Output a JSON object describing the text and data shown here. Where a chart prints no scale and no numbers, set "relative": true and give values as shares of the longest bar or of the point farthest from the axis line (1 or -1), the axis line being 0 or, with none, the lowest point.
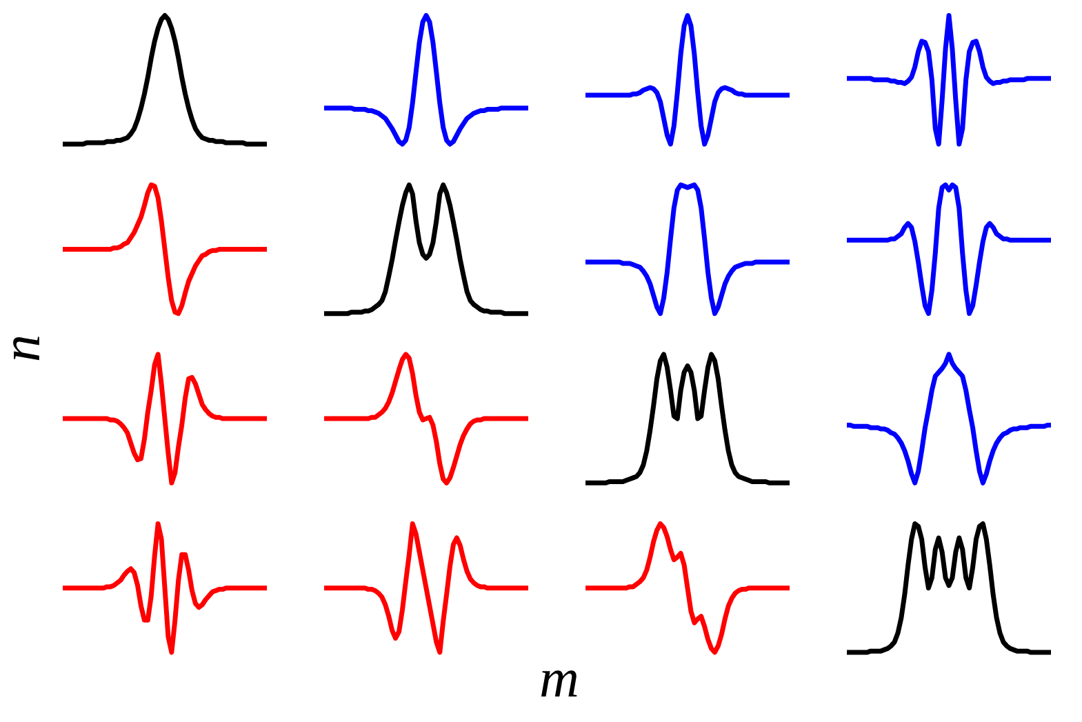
{
  "chart_data": [
    {
      "type": "line",
      "relative": true,
      "color": "#000000",
      "categories": [
        null,
        null,
        null,
        null,
        null,
        null,
        null,
        null,
        null,
        null,
        null,
        null,
        null,
        null,
        null,
        null,
        null,
        null,
        null,
        null,
        null,
        null,
        null,
        null,
        null,
        null,
        null,
        null,
        null,
        null,
        null,
        null,
        null,
        null,
        null,
        null,
        null,
        null,
        null,
        null,
        null,
        null,
        null,
        null,
        null,
        null,
        null,
        null,
        null,
        null,
        null,
        null,
        null,
        null,
        null,
        null,
        null,
        null,
        null,
        null,
        null
      ],
      "values": [
        0,
        0,
        0,
        0,
        0,
        0,
        0,
        0.01,
        0.01,
        0.01,
        0.01,
        0.01,
        0.01,
        0.02,
        0.02,
        0.02,
        0.03,
        0.03,
        0.04,
        0.05,
        0.08,
        0.12,
        0.19,
        0.28,
        0.39,
        0.52,
        0.67,
        0.8,
        0.9,
        0.97,
        1,
        0.97,
        0.9,
        0.8,
        0.67,
        0.52,
        0.39,
        0.28,
        0.19,
        0.12,
        0.08,
        0.05,
        0.04,
        0.03,
        0.03,
        0.02,
        0.02,
        0.02,
        0.01,
        0.01,
        0.01,
        0.01,
        0.01,
        0.01,
        0,
        0,
        0,
        0,
        0,
        0,
        0
      ]
    },
    {
      "type": "line",
      "relative": true,
      "color": "#0000ff",
      "categories": [
        null,
        null,
        null,
        null,
        null,
        null,
        null,
        null,
        null,
        null,
        null,
        null,
        null,
        null,
        null,
        null,
        null,
        null,
        null,
        null,
        null,
        null,
        null,
        null,
        null,
        null,
        null,
        null,
        null,
        null,
        null,
        null,
        null,
        null,
        null,
        null,
        null,
        null,
        null,
        null,
        null,
        null,
        null,
        null,
        null,
        null,
        null,
        null,
        null,
        null,
        null,
        null,
        null,
        null,
        null,
        null,
        null,
        null,
        null,
        null,
        null
      ],
      "values": [
        0.28,
        0.28,
        0.28,
        0.28,
        0.28,
        0.28,
        0.28,
        0.28,
        0.28,
        0.27,
        0.27,
        0.27,
        0.27,
        0.26,
        0.26,
        0.25,
        0.24,
        0.22,
        0.2,
        0.16,
        0.12,
        0.07,
        0.02,
        0,
        0.03,
        0.13,
        0.32,
        0.56,
        0.79,
        0.95,
        1,
        0.95,
        0.79,
        0.56,
        0.32,
        0.13,
        0.03,
        0,
        0.02,
        0.07,
        0.12,
        0.16,
        0.2,
        0.22,
        0.24,
        0.25,
        0.26,
        0.26,
        0.27,
        0.27,
        0.27,
        0.27,
        0.28,
        0.28,
        0.28,
        0.28,
        0.28,
        0.28,
        0.28,
        0.28,
        0.28
      ]
    },
    {
      "type": "line",
      "relative": true,
      "color": "#0000ff",
      "categories": [
        null,
        null,
        null,
        null,
        null,
        null,
        null,
        null,
        null,
        null,
        null,
        null,
        null,
        null,
        null,
        null,
        null,
        null,
        null,
        null,
        null,
        null,
        null,
        null,
        null,
        null,
        null,
        null,
        null,
        null,
        null,
        null,
        null,
        null,
        null,
        null,
        null,
        null,
        null,
        null,
        null,
        null,
        null,
        null,
        null,
        null,
        null,
        null,
        null,
        null,
        null,
        null,
        null,
        null,
        null,
        null,
        null,
        null,
        null,
        null,
        null
      ],
      "values": [
        0.38,
        0.38,
        0.38,
        0.38,
        0.38,
        0.38,
        0.38,
        0.38,
        0.38,
        0.38,
        0.38,
        0.38,
        0.38,
        0.38,
        0.39,
        0.39,
        0.4,
        0.42,
        0.43,
        0.44,
        0.43,
        0.4,
        0.33,
        0.2,
        0.07,
        0,
        0.14,
        0.4,
        0.7,
        0.92,
        1,
        0.92,
        0.7,
        0.4,
        0.14,
        0,
        0.07,
        0.2,
        0.33,
        0.4,
        0.43,
        0.44,
        0.43,
        0.42,
        0.4,
        0.39,
        0.39,
        0.38,
        0.38,
        0.38,
        0.38,
        0.38,
        0.38,
        0.38,
        0.38,
        0.38,
        0.38,
        0.38,
        0.38,
        0.38,
        0.38
      ]
    },
    {
      "type": "line",
      "relative": true,
      "color": "#0000ff",
      "categories": [
        null,
        null,
        null,
        null,
        null,
        null,
        null,
        null,
        null,
        null,
        null,
        null,
        null,
        null,
        null,
        null,
        null,
        null,
        null,
        null,
        null,
        null,
        null,
        null,
        null,
        null,
        null,
        null,
        null,
        null,
        null,
        null,
        null,
        null,
        null,
        null,
        null,
        null,
        null,
        null,
        null,
        null,
        null,
        null,
        null,
        null,
        null,
        null,
        null,
        null,
        null,
        null,
        null,
        null,
        null,
        null,
        null,
        null,
        null,
        null,
        null
      ],
      "values": [
        0.51,
        0.51,
        0.51,
        0.51,
        0.51,
        0.51,
        0.51,
        0.51,
        0.5,
        0.5,
        0.5,
        0.5,
        0.5,
        0.49,
        0.49,
        0.48,
        0.48,
        0.47,
        0.49,
        0.52,
        0.6,
        0.72,
        0.8,
        0.79,
        0.72,
        0.5,
        0.12,
        0,
        0.34,
        0.74,
        1,
        0.74,
        0.34,
        0,
        0.12,
        0.5,
        0.72,
        0.79,
        0.8,
        0.72,
        0.6,
        0.52,
        0.49,
        0.47,
        0.48,
        0.48,
        0.49,
        0.49,
        0.5,
        0.5,
        0.5,
        0.5,
        0.5,
        0.51,
        0.51,
        0.51,
        0.51,
        0.51,
        0.51,
        0.51,
        0.51
      ]
    },
    {
      "type": "line",
      "relative": true,
      "color": "#ff0000",
      "categories": [
        null,
        null,
        null,
        null,
        null,
        null,
        null,
        null,
        null,
        null,
        null,
        null,
        null,
        null,
        null,
        null,
        null,
        null,
        null,
        null,
        null,
        null,
        null,
        null,
        null,
        null,
        null,
        null,
        null,
        null,
        null,
        null,
        null,
        null,
        null,
        null,
        null,
        null,
        null,
        null,
        null,
        null,
        null,
        null,
        null,
        null,
        null,
        null,
        null,
        null,
        null,
        null,
        null,
        null,
        null,
        null,
        null,
        null,
        null,
        null,
        null
      ],
      "values": [
        0.5,
        0.5,
        0.5,
        0.5,
        0.5,
        0.5,
        0.5,
        0.5,
        0.5,
        0.5,
        0.5,
        0.5,
        0.5,
        0.5,
        0.5,
        0.51,
        0.51,
        0.52,
        0.54,
        0.55,
        0.59,
        0.63,
        0.69,
        0.75,
        0.84,
        0.94,
        1,
        0.99,
        0.9,
        0.72,
        0.5,
        0.28,
        0.1,
        0.01,
        0,
        0.06,
        0.16,
        0.25,
        0.31,
        0.37,
        0.41,
        0.45,
        0.46,
        0.48,
        0.49,
        0.49,
        0.5,
        0.5,
        0.5,
        0.5,
        0.5,
        0.5,
        0.5,
        0.5,
        0.5,
        0.5,
        0.5,
        0.5,
        0.5,
        0.5,
        0.5
      ]
    },
    {
      "type": "line",
      "relative": true,
      "color": "#000000",
      "categories": [
        null,
        null,
        null,
        null,
        null,
        null,
        null,
        null,
        null,
        null,
        null,
        null,
        null,
        null,
        null,
        null,
        null,
        null,
        null,
        null,
        null,
        null,
        null,
        null,
        null,
        null,
        null,
        null,
        null,
        null,
        null,
        null,
        null,
        null,
        null,
        null,
        null,
        null,
        null,
        null,
        null,
        null,
        null,
        null,
        null,
        null,
        null,
        null,
        null,
        null,
        null,
        null,
        null,
        null,
        null,
        null,
        null,
        null,
        null,
        null,
        null
      ],
      "values": [
        0,
        0,
        0,
        0,
        0,
        0,
        0,
        0,
        0.01,
        0.01,
        0.01,
        0.01,
        0.02,
        0.02,
        0.03,
        0.05,
        0.07,
        0.1,
        0.17,
        0.29,
        0.42,
        0.57,
        0.71,
        0.84,
        0.94,
        1,
        0.93,
        0.72,
        0.55,
        0.46,
        0.43,
        0.46,
        0.55,
        0.72,
        0.93,
        1,
        0.94,
        0.84,
        0.71,
        0.57,
        0.42,
        0.29,
        0.17,
        0.1,
        0.07,
        0.05,
        0.03,
        0.02,
        0.02,
        0.01,
        0.01,
        0.01,
        0.01,
        0,
        0,
        0,
        0,
        0,
        0,
        0,
        0
      ]
    },
    {
      "type": "line",
      "relative": true,
      "color": "#0000ff",
      "categories": [
        null,
        null,
        null,
        null,
        null,
        null,
        null,
        null,
        null,
        null,
        null,
        null,
        null,
        null,
        null,
        null,
        null,
        null,
        null,
        null,
        null,
        null,
        null,
        null,
        null,
        null,
        null,
        null,
        null,
        null,
        null,
        null,
        null,
        null,
        null,
        null,
        null,
        null,
        null,
        null,
        null,
        null,
        null,
        null,
        null,
        null,
        null,
        null,
        null,
        null,
        null,
        null,
        null,
        null,
        null,
        null,
        null,
        null,
        null,
        null,
        null
      ],
      "values": [
        0.4,
        0.4,
        0.4,
        0.4,
        0.4,
        0.4,
        0.4,
        0.4,
        0.4,
        0.4,
        0.4,
        0.39,
        0.39,
        0.39,
        0.38,
        0.37,
        0.36,
        0.33,
        0.29,
        0.23,
        0.14,
        0.05,
        0,
        0.12,
        0.32,
        0.58,
        0.82,
        0.96,
        1,
        0.99,
        0.98,
        0.99,
        1,
        0.96,
        0.82,
        0.58,
        0.32,
        0.12,
        0,
        0.05,
        0.14,
        0.23,
        0.29,
        0.33,
        0.36,
        0.37,
        0.38,
        0.39,
        0.39,
        0.39,
        0.4,
        0.4,
        0.4,
        0.4,
        0.4,
        0.4,
        0.4,
        0.4,
        0.4,
        0.4,
        0.4
      ]
    },
    {
      "type": "line",
      "relative": true,
      "color": "#0000ff",
      "categories": [
        null,
        null,
        null,
        null,
        null,
        null,
        null,
        null,
        null,
        null,
        null,
        null,
        null,
        null,
        null,
        null,
        null,
        null,
        null,
        null,
        null,
        null,
        null,
        null,
        null,
        null,
        null,
        null,
        null,
        null,
        null,
        null,
        null,
        null,
        null,
        null,
        null,
        null,
        null,
        null,
        null,
        null,
        null,
        null,
        null,
        null,
        null,
        null,
        null,
        null,
        null,
        null,
        null,
        null,
        null,
        null,
        null,
        null,
        null,
        null,
        null
      ],
      "values": [
        0.57,
        0.57,
        0.57,
        0.57,
        0.57,
        0.57,
        0.57,
        0.57,
        0.57,
        0.57,
        0.57,
        0.57,
        0.57,
        0.58,
        0.58,
        0.6,
        0.62,
        0.67,
        0.7,
        0.67,
        0.56,
        0.4,
        0.22,
        0.06,
        0,
        0.18,
        0.47,
        0.82,
        0.98,
        1,
        0.96,
        1,
        0.98,
        0.82,
        0.47,
        0.18,
        0,
        0.06,
        0.22,
        0.4,
        0.56,
        0.67,
        0.7,
        0.67,
        0.62,
        0.6,
        0.58,
        0.58,
        0.57,
        0.57,
        0.57,
        0.57,
        0.57,
        0.57,
        0.57,
        0.57,
        0.57,
        0.57,
        0.57,
        0.57,
        0.57
      ]
    },
    {
      "type": "line",
      "relative": true,
      "color": "#ff0000",
      "ylabel": "n",
      "categories": [
        null,
        null,
        null,
        null,
        null,
        null,
        null,
        null,
        null,
        null,
        null,
        null,
        null,
        null,
        null,
        null,
        null,
        null,
        null,
        null,
        null,
        null,
        null,
        null,
        null,
        null,
        null,
        null,
        null,
        null,
        null,
        null,
        null,
        null,
        null,
        null,
        null,
        null,
        null,
        null,
        null,
        null,
        null,
        null,
        null,
        null,
        null,
        null,
        null,
        null,
        null,
        null,
        null,
        null,
        null,
        null,
        null,
        null,
        null,
        null,
        null
      ],
      "values": [
        0.5,
        0.5,
        0.5,
        0.5,
        0.5,
        0.5,
        0.5,
        0.5,
        0.5,
        0.5,
        0.5,
        0.5,
        0.5,
        0.5,
        0.49,
        0.49,
        0.48,
        0.46,
        0.43,
        0.39,
        0.31,
        0.23,
        0.18,
        0.19,
        0.34,
        0.55,
        0.72,
        0.92,
        1,
        0.77,
        0.5,
        0.23,
        0,
        0.08,
        0.28,
        0.45,
        0.66,
        0.81,
        0.82,
        0.77,
        0.69,
        0.61,
        0.57,
        0.54,
        0.52,
        0.51,
        0.51,
        0.5,
        0.5,
        0.5,
        0.5,
        0.5,
        0.5,
        0.5,
        0.5,
        0.5,
        0.5,
        0.5,
        0.5,
        0.5,
        0.5
      ]
    },
    {
      "type": "line",
      "relative": true,
      "color": "#ff0000",
      "categories": [
        null,
        null,
        null,
        null,
        null,
        null,
        null,
        null,
        null,
        null,
        null,
        null,
        null,
        null,
        null,
        null,
        null,
        null,
        null,
        null,
        null,
        null,
        null,
        null,
        null,
        null,
        null,
        null,
        null,
        null,
        null,
        null,
        null,
        null,
        null,
        null,
        null,
        null,
        null,
        null,
        null,
        null,
        null,
        null,
        null,
        null,
        null,
        null,
        null,
        null,
        null,
        null,
        null,
        null,
        null,
        null,
        null,
        null,
        null,
        null,
        null
      ],
      "values": [
        0.5,
        0.5,
        0.5,
        0.5,
        0.5,
        0.5,
        0.5,
        0.5,
        0.5,
        0.5,
        0.5,
        0.5,
        0.5,
        0.5,
        0.51,
        0.51,
        0.53,
        0.55,
        0.58,
        0.63,
        0.7,
        0.79,
        0.88,
        0.96,
        1,
        0.97,
        0.85,
        0.68,
        0.55,
        0.49,
        0.5,
        0.51,
        0.45,
        0.32,
        0.15,
        0.03,
        0,
        0.04,
        0.12,
        0.21,
        0.3,
        0.37,
        0.42,
        0.46,
        0.48,
        0.49,
        0.49,
        0.5,
        0.5,
        0.5,
        0.5,
        0.5,
        0.5,
        0.5,
        0.5,
        0.5,
        0.5,
        0.5,
        0.5,
        0.5,
        0.5
      ]
    },
    {
      "type": "line",
      "relative": true,
      "color": "#000000",
      "categories": [
        null,
        null,
        null,
        null,
        null,
        null,
        null,
        null,
        null,
        null,
        null,
        null,
        null,
        null,
        null,
        null,
        null,
        null,
        null,
        null,
        null,
        null,
        null,
        null,
        null,
        null,
        null,
        null,
        null,
        null,
        null,
        null,
        null,
        null,
        null,
        null,
        null,
        null,
        null,
        null,
        null,
        null,
        null,
        null,
        null,
        null,
        null,
        null,
        null,
        null,
        null,
        null,
        null,
        null,
        null,
        null,
        null,
        null,
        null,
        null,
        null
      ],
      "values": [
        0,
        0,
        0,
        0,
        0,
        0,
        0,
        0.01,
        0.01,
        0.01,
        0.01,
        0.01,
        0.02,
        0.03,
        0.04,
        0.05,
        0.08,
        0.14,
        0.25,
        0.41,
        0.6,
        0.81,
        0.95,
        1,
        0.9,
        0.72,
        0.52,
        0.5,
        0.72,
        0.86,
        0.91,
        0.86,
        0.72,
        0.5,
        0.52,
        0.72,
        0.9,
        1,
        0.95,
        0.81,
        0.6,
        0.41,
        0.25,
        0.14,
        0.08,
        0.05,
        0.04,
        0.03,
        0.02,
        0.01,
        0.01,
        0.01,
        0.01,
        0.01,
        0,
        0,
        0,
        0,
        0,
        0,
        0
      ]
    },
    {
      "type": "line",
      "relative": true,
      "color": "#0000ff",
      "categories": [
        null,
        null,
        null,
        null,
        null,
        null,
        null,
        null,
        null,
        null,
        null,
        null,
        null,
        null,
        null,
        null,
        null,
        null,
        null,
        null,
        null,
        null,
        null,
        null,
        null,
        null,
        null,
        null,
        null,
        null,
        null,
        null,
        null,
        null,
        null,
        null,
        null,
        null,
        null,
        null,
        null,
        null,
        null,
        null,
        null,
        null,
        null,
        null,
        null,
        null,
        null,
        null,
        null,
        null,
        null,
        null,
        null,
        null,
        null,
        null,
        null
      ],
      "values": [
        0.45,
        0.45,
        0.44,
        0.44,
        0.44,
        0.44,
        0.44,
        0.43,
        0.43,
        0.43,
        0.42,
        0.42,
        0.41,
        0.39,
        0.38,
        0.35,
        0.31,
        0.25,
        0.17,
        0.07,
        0,
        0.09,
        0.25,
        0.43,
        0.57,
        0.72,
        0.83,
        0.86,
        0.89,
        0.93,
        1,
        0.93,
        0.89,
        0.86,
        0.83,
        0.72,
        0.57,
        0.43,
        0.25,
        0.09,
        0,
        0.07,
        0.17,
        0.25,
        0.31,
        0.35,
        0.38,
        0.39,
        0.41,
        0.42,
        0.42,
        0.43,
        0.43,
        0.43,
        0.44,
        0.44,
        0.44,
        0.44,
        0.44,
        0.45,
        0.45
      ]
    },
    {
      "type": "line",
      "relative": true,
      "color": "#ff0000",
      "categories": [
        null,
        null,
        null,
        null,
        null,
        null,
        null,
        null,
        null,
        null,
        null,
        null,
        null,
        null,
        null,
        null,
        null,
        null,
        null,
        null,
        null,
        null,
        null,
        null,
        null,
        null,
        null,
        null,
        null,
        null,
        null,
        null,
        null,
        null,
        null,
        null,
        null,
        null,
        null,
        null,
        null,
        null,
        null,
        null,
        null,
        null,
        null,
        null,
        null,
        null,
        null,
        null,
        null,
        null,
        null,
        null,
        null,
        null,
        null,
        null,
        null
      ],
      "values": [
        0.5,
        0.5,
        0.5,
        0.5,
        0.5,
        0.5,
        0.5,
        0.5,
        0.5,
        0.5,
        0.5,
        0.5,
        0.5,
        0.51,
        0.51,
        0.52,
        0.54,
        0.56,
        0.6,
        0.63,
        0.65,
        0.62,
        0.52,
        0.36,
        0.25,
        0.25,
        0.44,
        0.75,
        1,
        0.88,
        0.5,
        0.12,
        0,
        0.25,
        0.56,
        0.76,
        0.76,
        0.64,
        0.48,
        0.38,
        0.35,
        0.37,
        0.41,
        0.44,
        0.47,
        0.48,
        0.49,
        0.49,
        0.5,
        0.5,
        0.5,
        0.5,
        0.5,
        0.5,
        0.5,
        0.5,
        0.5,
        0.5,
        0.5,
        0.5,
        0.5
      ]
    },
    {
      "type": "line",
      "relative": true,
      "color": "#ff0000",
      "xlabel": "m",
      "categories": [
        null,
        null,
        null,
        null,
        null,
        null,
        null,
        null,
        null,
        null,
        null,
        null,
        null,
        null,
        null,
        null,
        null,
        null,
        null,
        null,
        null,
        null,
        null,
        null,
        null,
        null,
        null,
        null,
        null,
        null,
        null,
        null,
        null,
        null,
        null,
        null,
        null,
        null,
        null,
        null,
        null,
        null,
        null,
        null,
        null,
        null,
        null,
        null,
        null,
        null,
        null,
        null,
        null,
        null,
        null,
        null,
        null,
        null,
        null,
        null,
        null
      ],
      "values": [
        0.5,
        0.5,
        0.5,
        0.5,
        0.5,
        0.5,
        0.5,
        0.5,
        0.5,
        0.5,
        0.5,
        0.5,
        0.5,
        0.49,
        0.49,
        0.48,
        0.46,
        0.43,
        0.37,
        0.28,
        0.17,
        0.11,
        0.16,
        0.33,
        0.55,
        0.76,
        1,
        0.92,
        0.78,
        0.64,
        0.5,
        0.36,
        0.22,
        0.08,
        0,
        0.24,
        0.45,
        0.67,
        0.84,
        0.89,
        0.83,
        0.72,
        0.63,
        0.57,
        0.54,
        0.52,
        0.51,
        0.51,
        0.5,
        0.5,
        0.5,
        0.5,
        0.5,
        0.5,
        0.5,
        0.5,
        0.5,
        0.5,
        0.5,
        0.5,
        0.5
      ]
    },
    {
      "type": "line",
      "relative": true,
      "color": "#ff0000",
      "categories": [
        null,
        null,
        null,
        null,
        null,
        null,
        null,
        null,
        null,
        null,
        null,
        null,
        null,
        null,
        null,
        null,
        null,
        null,
        null,
        null,
        null,
        null,
        null,
        null,
        null,
        null,
        null,
        null,
        null,
        null,
        null,
        null,
        null,
        null,
        null,
        null,
        null,
        null,
        null,
        null,
        null,
        null,
        null,
        null,
        null,
        null,
        null,
        null,
        null,
        null,
        null,
        null,
        null,
        null,
        null,
        null,
        null,
        null,
        null,
        null,
        null
      ],
      "values": [
        0.5,
        0.5,
        0.5,
        0.5,
        0.5,
        0.5,
        0.5,
        0.5,
        0.5,
        0.5,
        0.5,
        0.5,
        0.5,
        0.51,
        0.51,
        0.53,
        0.55,
        0.58,
        0.64,
        0.74,
        0.86,
        0.95,
        1,
        0.97,
        0.9,
        0.8,
        0.72,
        0.74,
        0.77,
        0.68,
        0.5,
        0.32,
        0.23,
        0.26,
        0.28,
        0.2,
        0.1,
        0.03,
        0,
        0.05,
        0.14,
        0.26,
        0.36,
        0.42,
        0.46,
        0.48,
        0.49,
        0.49,
        0.5,
        0.5,
        0.5,
        0.5,
        0.5,
        0.5,
        0.5,
        0.5,
        0.5,
        0.5,
        0.5,
        0.5,
        0.5
      ]
    },
    {
      "type": "line",
      "relative": true,
      "color": "#000000",
      "categories": [
        null,
        null,
        null,
        null,
        null,
        null,
        null,
        null,
        null,
        null,
        null,
        null,
        null,
        null,
        null,
        null,
        null,
        null,
        null,
        null,
        null,
        null,
        null,
        null,
        null,
        null,
        null,
        null,
        null,
        null,
        null,
        null,
        null,
        null,
        null,
        null,
        null,
        null,
        null,
        null,
        null,
        null,
        null,
        null,
        null,
        null,
        null,
        null,
        null,
        null,
        null,
        null,
        null,
        null,
        null,
        null,
        null,
        null,
        null,
        null,
        null
      ],
      "values": [
        0,
        0,
        0,
        0,
        0,
        0,
        0,
        0.01,
        0.01,
        0.01,
        0.01,
        0.02,
        0.03,
        0.05,
        0.08,
        0.15,
        0.27,
        0.45,
        0.68,
        0.88,
        1,
        0.98,
        0.88,
        0.66,
        0.5,
        0.58,
        0.8,
        0.89,
        0.78,
        0.58,
        0.52,
        0.58,
        0.78,
        0.89,
        0.8,
        0.58,
        0.5,
        0.66,
        0.88,
        0.98,
        1,
        0.88,
        0.68,
        0.45,
        0.27,
        0.15,
        0.08,
        0.05,
        0.03,
        0.02,
        0.01,
        0.01,
        0.01,
        0.01,
        0,
        0,
        0,
        0,
        0,
        0,
        0
      ]
    }
  ]
}
